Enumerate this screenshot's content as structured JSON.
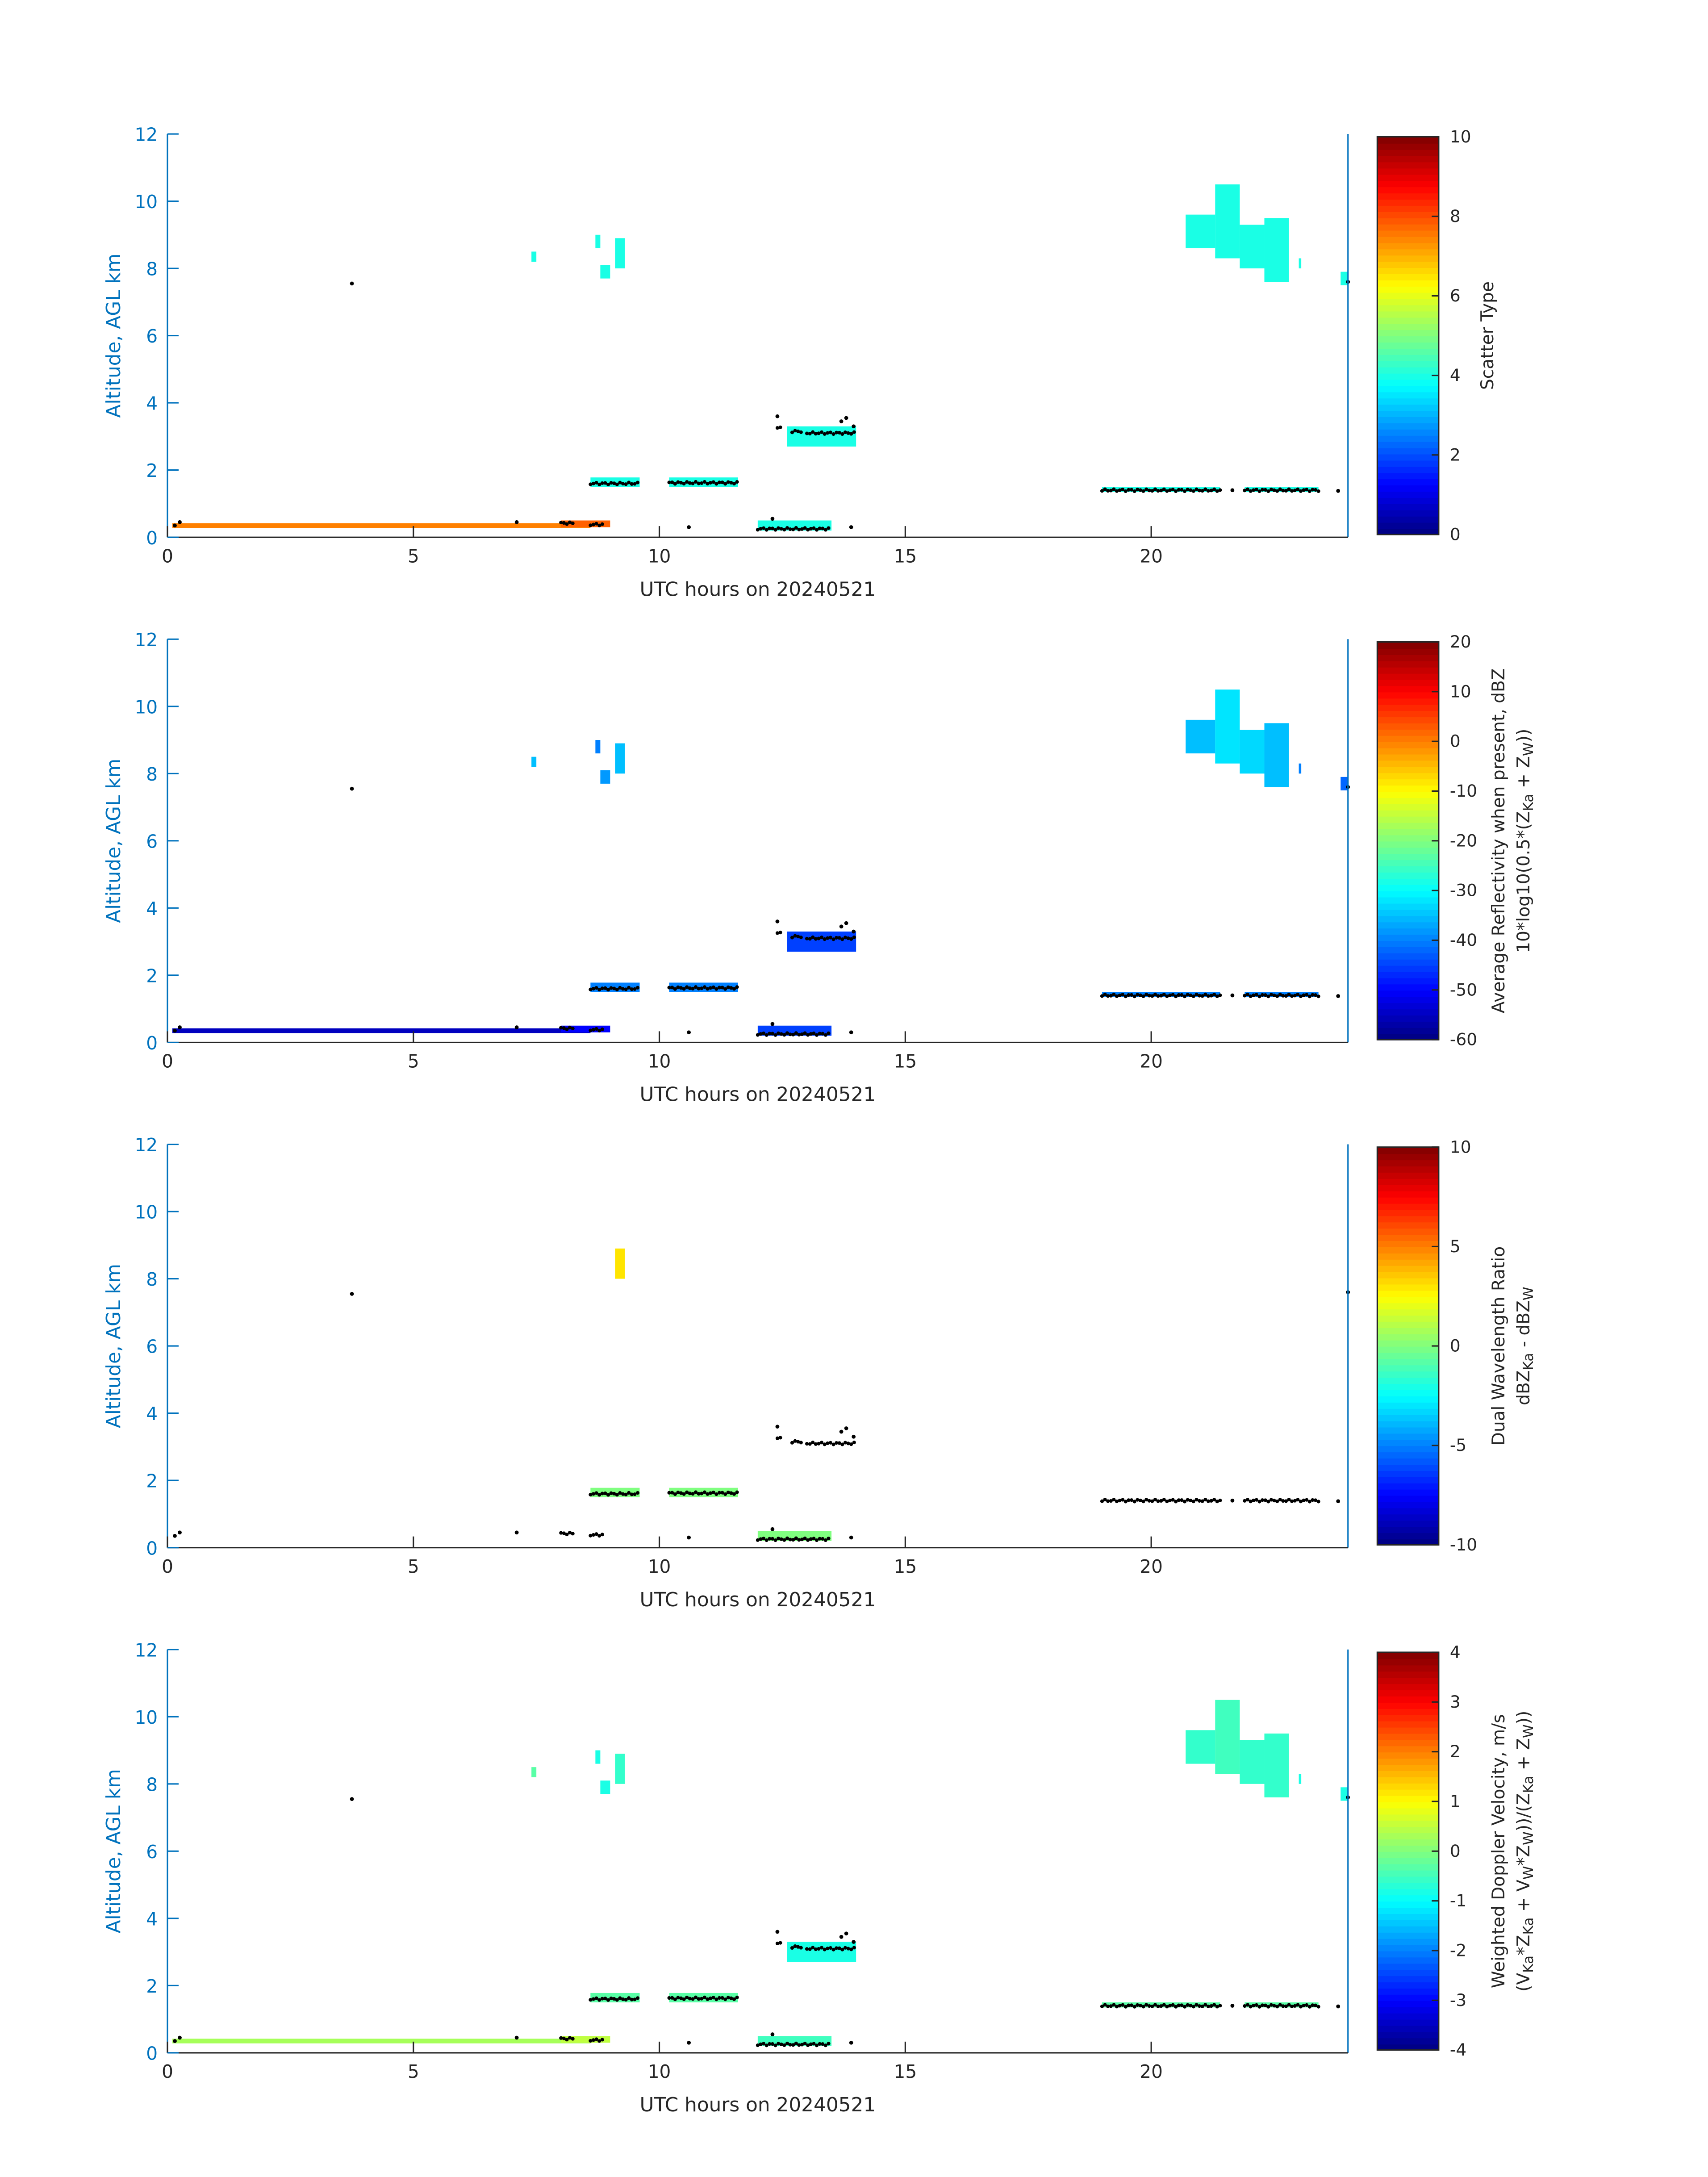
{
  "colors": {
    "axis_y": "#0072BD",
    "axis_x": "#262626",
    "cloud_base_dots": "#000000",
    "colormap": "jet"
  },
  "chart_data": [
    {
      "type": "heatmap",
      "xlabel": "UTC hours on 20240521",
      "ylabel": "Altitude, AGL km",
      "xlim": [
        0,
        24
      ],
      "ylim": [
        0,
        12
      ],
      "xticks": [
        "0",
        "5",
        "10",
        "15",
        "20"
      ],
      "yticks": [
        "0",
        "2",
        "4",
        "6",
        "8",
        "10",
        "12"
      ],
      "colorbar": {
        "range": [
          0,
          10
        ],
        "ticks": [
          "0",
          "2",
          "4",
          "6",
          "8",
          "10"
        ],
        "label": [
          [
            {
              "t": "Scatter Type",
              "sub": false
            }
          ]
        ]
      },
      "value_index": 0
    },
    {
      "type": "heatmap",
      "xlabel": "UTC hours on 20240521",
      "ylabel": "Altitude, AGL km",
      "xlim": [
        0,
        24
      ],
      "ylim": [
        0,
        12
      ],
      "xticks": [
        "0",
        "5",
        "10",
        "15",
        "20"
      ],
      "yticks": [
        "0",
        "2",
        "4",
        "6",
        "8",
        "10",
        "12"
      ],
      "colorbar": {
        "range": [
          -60,
          20
        ],
        "ticks": [
          "-60",
          "-50",
          "-40",
          "-30",
          "-20",
          "-10",
          "0",
          "10",
          "20"
        ],
        "label": [
          [
            {
              "t": "Average Reflectivity when present, dBZ",
              "sub": false
            }
          ],
          [
            {
              "t": "10*log10(0.5*(Z",
              "sub": false
            },
            {
              "t": "Ka",
              "sub": true
            },
            {
              "t": " + Z",
              "sub": false
            },
            {
              "t": "W",
              "sub": true
            },
            {
              "t": "))",
              "sub": false
            }
          ]
        ]
      },
      "value_index": 1
    },
    {
      "type": "heatmap",
      "xlabel": "UTC hours on 20240521",
      "ylabel": "Altitude, AGL km",
      "xlim": [
        0,
        24
      ],
      "ylim": [
        0,
        12
      ],
      "xticks": [
        "0",
        "5",
        "10",
        "15",
        "20"
      ],
      "yticks": [
        "0",
        "2",
        "4",
        "6",
        "8",
        "10",
        "12"
      ],
      "colorbar": {
        "range": [
          -10,
          10
        ],
        "ticks": [
          "-10",
          "-5",
          "0",
          "5",
          "10"
        ],
        "label": [
          [
            {
              "t": "Dual Wavelength Ratio",
              "sub": false
            }
          ],
          [
            {
              "t": "dBZ",
              "sub": false
            },
            {
              "t": "Ka",
              "sub": true
            },
            {
              "t": " - dBZ",
              "sub": false
            },
            {
              "t": "W",
              "sub": true
            }
          ]
        ]
      },
      "value_index": 2
    },
    {
      "type": "heatmap",
      "xlabel": "UTC hours on 20240521",
      "ylabel": "Altitude, AGL km",
      "xlim": [
        0,
        24
      ],
      "ylim": [
        0,
        12
      ],
      "xticks": [
        "0",
        "5",
        "10",
        "15",
        "20"
      ],
      "yticks": [
        "0",
        "2",
        "4",
        "6",
        "8",
        "10",
        "12"
      ],
      "colorbar": {
        "range": [
          -4,
          4
        ],
        "ticks": [
          "-4",
          "-3",
          "-2",
          "-1",
          "0",
          "1",
          "2",
          "3",
          "4"
        ],
        "label": [
          [
            {
              "t": "Weighted Doppler Velocity, m/s",
              "sub": false
            }
          ],
          [
            {
              "t": "(V",
              "sub": false
            },
            {
              "t": "Ka",
              "sub": true
            },
            {
              "t": "*Z",
              "sub": false
            },
            {
              "t": "Ka",
              "sub": true
            },
            {
              "t": " + V",
              "sub": false
            },
            {
              "t": "W",
              "sub": true
            },
            {
              "t": "*Z",
              "sub": false
            },
            {
              "t": "W",
              "sub": true
            },
            {
              "t": "))/(Z",
              "sub": false
            },
            {
              "t": "Ka",
              "sub": true
            },
            {
              "t": " + Z",
              "sub": false
            },
            {
              "t": "W",
              "sub": true
            },
            {
              "t": "))",
              "sub": false
            }
          ]
        ]
      },
      "value_index": 3
    }
  ],
  "echoes": [
    {
      "hours": [
        0.1,
        8.6
      ],
      "km": [
        0.28,
        0.42
      ],
      "values": [
        7.5,
        -55,
        null,
        0.3
      ]
    },
    {
      "hours": [
        7.4,
        7.5
      ],
      "km": [
        8.2,
        8.5
      ],
      "values": [
        4,
        -35,
        null,
        -0.3
      ]
    },
    {
      "hours": [
        8.7,
        8.8
      ],
      "km": [
        8.6,
        9.0
      ],
      "values": [
        4,
        -40,
        null,
        -0.8
      ]
    },
    {
      "hours": [
        8.8,
        9.0
      ],
      "km": [
        7.7,
        8.1
      ],
      "values": [
        4,
        -38,
        null,
        -0.8
      ]
    },
    {
      "hours": [
        9.1,
        9.3
      ],
      "km": [
        8.0,
        8.9
      ],
      "values": [
        4,
        -35,
        3,
        -0.6
      ]
    },
    {
      "hours": [
        8.0,
        9.0
      ],
      "km": [
        0.3,
        0.5
      ],
      "values": [
        7.8,
        -50,
        null,
        0.5
      ]
    },
    {
      "hours": [
        8.6,
        9.6
      ],
      "km": [
        1.5,
        1.78
      ],
      "values": [
        4,
        -40,
        0,
        -0.3
      ]
    },
    {
      "hours": [
        10.2,
        11.6
      ],
      "km": [
        1.5,
        1.78
      ],
      "values": [
        4,
        -40,
        0,
        -0.3
      ]
    },
    {
      "hours": [
        12.0,
        13.5
      ],
      "km": [
        0.2,
        0.5
      ],
      "values": [
        4,
        -45,
        0,
        -0.5
      ]
    },
    {
      "hours": [
        12.6,
        14.0
      ],
      "km": [
        2.7,
        3.3
      ],
      "values": [
        4,
        -45,
        null,
        -0.8
      ]
    },
    {
      "hours": [
        19.0,
        21.4
      ],
      "km": [
        1.35,
        1.5
      ],
      "values": [
        4,
        -40,
        null,
        -0.3
      ]
    },
    {
      "hours": [
        21.9,
        23.4
      ],
      "km": [
        1.35,
        1.5
      ],
      "values": [
        4,
        -40,
        null,
        -0.3
      ]
    },
    {
      "hours": [
        20.7,
        21.3
      ],
      "km": [
        8.6,
        9.6
      ],
      "values": [
        4,
        -35,
        null,
        -0.6
      ]
    },
    {
      "hours": [
        21.3,
        21.8
      ],
      "km": [
        8.3,
        10.5
      ],
      "values": [
        4,
        -32,
        null,
        -0.5
      ]
    },
    {
      "hours": [
        21.8,
        22.3
      ],
      "km": [
        8.0,
        9.3
      ],
      "values": [
        4,
        -33,
        null,
        -0.6
      ]
    },
    {
      "hours": [
        22.3,
        22.8
      ],
      "km": [
        7.6,
        9.5
      ],
      "values": [
        4,
        -35,
        null,
        -0.6
      ]
    },
    {
      "hours": [
        23.0,
        23.05
      ],
      "km": [
        8.0,
        8.3
      ],
      "values": [
        4,
        -40,
        null,
        -0.8
      ]
    },
    {
      "hours": [
        23.85,
        24.0
      ],
      "km": [
        7.5,
        7.9
      ],
      "values": [
        4,
        -42,
        null,
        -0.8
      ]
    }
  ],
  "cloud_base_points": [
    [
      3.75,
      7.55
    ],
    [
      0.15,
      0.35
    ],
    [
      0.25,
      0.45
    ],
    [
      7.1,
      0.45
    ],
    [
      10.6,
      0.3
    ],
    [
      12.4,
      3.6
    ],
    [
      13.7,
      3.45
    ],
    [
      13.8,
      3.55
    ],
    [
      13.9,
      0.3
    ],
    [
      12.3,
      0.55
    ],
    [
      21.65,
      1.4
    ],
    [
      23.8,
      1.38
    ],
    [
      24.0,
      7.6
    ],
    [
      13.95,
      3.3
    ]
  ],
  "cloud_base_segments": [
    [
      8.6,
      9.6,
      1.6
    ],
    [
      10.2,
      11.6,
      1.62
    ],
    [
      12.0,
      13.5,
      0.25
    ],
    [
      12.4,
      12.5,
      3.25
    ],
    [
      12.7,
      12.9,
      3.15
    ],
    [
      13.0,
      14.0,
      3.1
    ],
    [
      19.0,
      21.4,
      1.4
    ],
    [
      21.9,
      23.4,
      1.4
    ],
    [
      8.0,
      8.3,
      0.42
    ],
    [
      8.6,
      8.9,
      0.38
    ]
  ]
}
